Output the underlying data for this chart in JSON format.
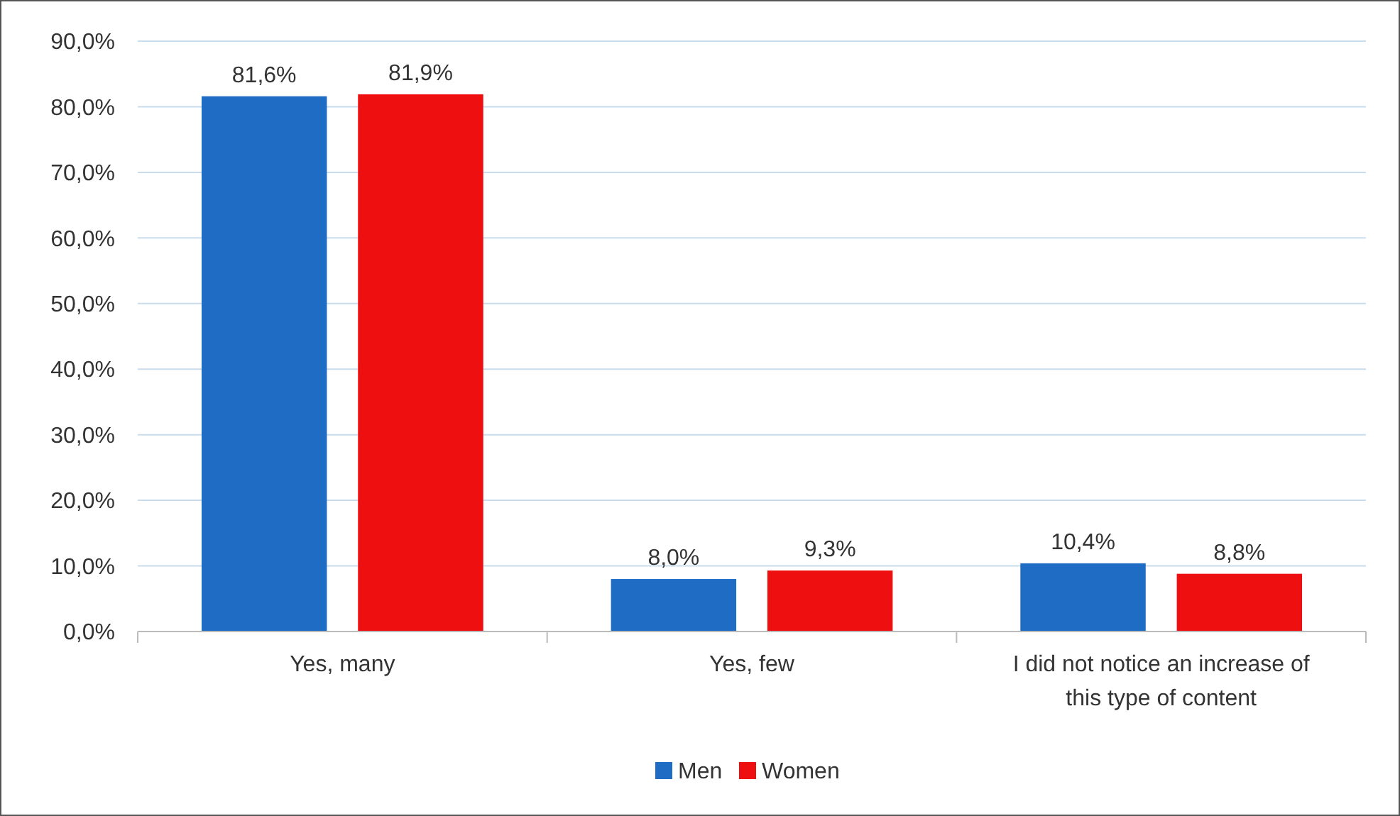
{
  "chart_data": {
    "type": "bar",
    "categories": [
      "Yes, many",
      "Yes, few",
      "I did not notice an increase of this type of content"
    ],
    "series": [
      {
        "name": "Men",
        "color": "#1f6cc4",
        "values": [
          81.6,
          8.0,
          10.4
        ],
        "value_labels": [
          "81,6%",
          "8,0%",
          "10,4%"
        ]
      },
      {
        "name": "Women",
        "color": "#ee1010",
        "values": [
          81.9,
          9.3,
          8.8
        ],
        "value_labels": [
          "81,9%",
          "9,3%",
          "8,8%"
        ]
      }
    ],
    "ylim": [
      0,
      90
    ],
    "yticks": [
      {
        "value": 0,
        "label": "0,0%"
      },
      {
        "value": 10,
        "label": "10,0%"
      },
      {
        "value": 20,
        "label": "20,0%"
      },
      {
        "value": 30,
        "label": "30,0%"
      },
      {
        "value": 40,
        "label": "40,0%"
      },
      {
        "value": 50,
        "label": "50,0%"
      },
      {
        "value": 60,
        "label": "60,0%"
      },
      {
        "value": 70,
        "label": "70,0%"
      },
      {
        "value": 80,
        "label": "80,0%"
      },
      {
        "value": 90,
        "label": "90,0%"
      }
    ],
    "grid": "y",
    "legend": "bottom"
  }
}
